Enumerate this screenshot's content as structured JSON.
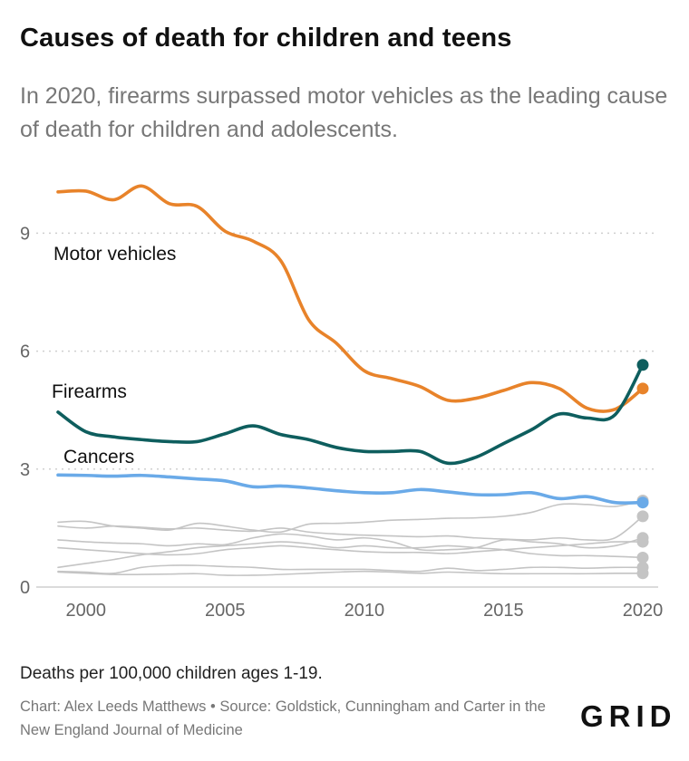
{
  "header": {
    "title": "Causes of death for children and teens",
    "subtitle": "In 2020, firearms surpassed motor vehicles as the leading cause of death for children and adolescents."
  },
  "footer": {
    "unit_note": "Deaths per 100,000 children ages 1-19.",
    "credit": "Chart: Alex Leeds Matthews • Source: Goldstick, Cunningham and Carter in the New England Journal of Medicine",
    "logo_text": "GRID"
  },
  "chart_data": {
    "type": "line",
    "title": "Causes of death for children and teens",
    "xlabel": "",
    "ylabel": "",
    "xlim": [
      1999,
      2020
    ],
    "ylim": [
      0,
      10.5
    ],
    "x_ticks": [
      2000,
      2005,
      2010,
      2015,
      2020
    ],
    "y_ticks": [
      0,
      3,
      6,
      9
    ],
    "grid": true,
    "x": [
      1999,
      2000,
      2001,
      2002,
      2003,
      2004,
      2005,
      2006,
      2007,
      2008,
      2009,
      2010,
      2011,
      2012,
      2013,
      2014,
      2015,
      2016,
      2017,
      2018,
      2019,
      2020
    ],
    "series": [
      {
        "name": "Motor vehicles",
        "color": "#e8832a",
        "highlight": true,
        "values": [
          10.05,
          10.07,
          9.85,
          10.2,
          9.75,
          9.68,
          9.05,
          8.8,
          8.3,
          6.8,
          6.2,
          5.5,
          5.3,
          5.1,
          4.75,
          4.8,
          5.0,
          5.2,
          5.05,
          4.55,
          4.52,
          5.05
        ]
      },
      {
        "name": "Firearms",
        "color": "#0e5e5e",
        "highlight": true,
        "values": [
          4.45,
          3.95,
          3.82,
          3.75,
          3.7,
          3.7,
          3.9,
          4.1,
          3.88,
          3.75,
          3.55,
          3.45,
          3.45,
          3.45,
          3.15,
          3.3,
          3.65,
          4.0,
          4.4,
          4.3,
          4.38,
          5.65
        ]
      },
      {
        "name": "Cancers",
        "color": "#6aaae8",
        "highlight": true,
        "values": [
          2.85,
          2.84,
          2.82,
          2.84,
          2.8,
          2.75,
          2.7,
          2.55,
          2.57,
          2.52,
          2.45,
          2.4,
          2.4,
          2.48,
          2.42,
          2.35,
          2.35,
          2.4,
          2.25,
          2.3,
          2.15,
          2.15
        ]
      },
      {
        "name": "",
        "color": "#c4c4c4",
        "highlight": false,
        "values": [
          1.65,
          1.67,
          1.55,
          1.5,
          1.45,
          1.62,
          1.55,
          1.45,
          1.4,
          1.6,
          1.62,
          1.65,
          1.7,
          1.72,
          1.75,
          1.76,
          1.8,
          1.9,
          2.1,
          2.1,
          2.05,
          2.2
        ]
      },
      {
        "name": "",
        "color": "#c4c4c4",
        "highlight": false,
        "values": [
          1.55,
          1.5,
          1.55,
          1.52,
          1.48,
          1.5,
          1.45,
          1.42,
          1.5,
          1.4,
          1.35,
          1.32,
          1.3,
          1.28,
          1.3,
          1.25,
          1.22,
          1.2,
          1.25,
          1.2,
          1.25,
          1.8
        ]
      },
      {
        "name": "",
        "color": "#c4c4c4",
        "highlight": false,
        "values": [
          1.2,
          1.15,
          1.12,
          1.1,
          1.05,
          1.1,
          1.08,
          1.25,
          1.35,
          1.3,
          1.2,
          1.25,
          1.15,
          0.95,
          0.95,
          1.0,
          1.2,
          1.15,
          1.1,
          1.0,
          1.05,
          1.25
        ]
      },
      {
        "name": "",
        "color": "#c4c4c4",
        "highlight": false,
        "values": [
          1.0,
          0.95,
          0.9,
          0.85,
          0.82,
          0.85,
          0.95,
          1.0,
          1.05,
          1.0,
          0.95,
          0.9,
          0.88,
          0.88,
          0.85,
          0.9,
          0.95,
          1.0,
          1.05,
          1.1,
          1.15,
          1.15
        ]
      },
      {
        "name": "",
        "color": "#c4c4c4",
        "highlight": false,
        "values": [
          0.5,
          0.6,
          0.7,
          0.82,
          0.9,
          1.0,
          1.05,
          1.1,
          1.15,
          1.1,
          1.0,
          1.05,
          1.0,
          1.0,
          1.05,
          1.0,
          0.95,
          0.85,
          0.8,
          0.8,
          0.78,
          0.75
        ]
      },
      {
        "name": "",
        "color": "#c4c4c4",
        "highlight": false,
        "values": [
          0.38,
          0.35,
          0.32,
          0.32,
          0.33,
          0.34,
          0.3,
          0.3,
          0.32,
          0.35,
          0.38,
          0.4,
          0.38,
          0.35,
          0.38,
          0.36,
          0.34,
          0.34,
          0.34,
          0.34,
          0.35,
          0.35
        ]
      },
      {
        "name": "",
        "color": "#c4c4c4",
        "highlight": false,
        "values": [
          0.4,
          0.38,
          0.35,
          0.5,
          0.55,
          0.55,
          0.52,
          0.5,
          0.45,
          0.45,
          0.45,
          0.45,
          0.42,
          0.4,
          0.48,
          0.42,
          0.45,
          0.5,
          0.5,
          0.48,
          0.5,
          0.5
        ]
      }
    ]
  }
}
